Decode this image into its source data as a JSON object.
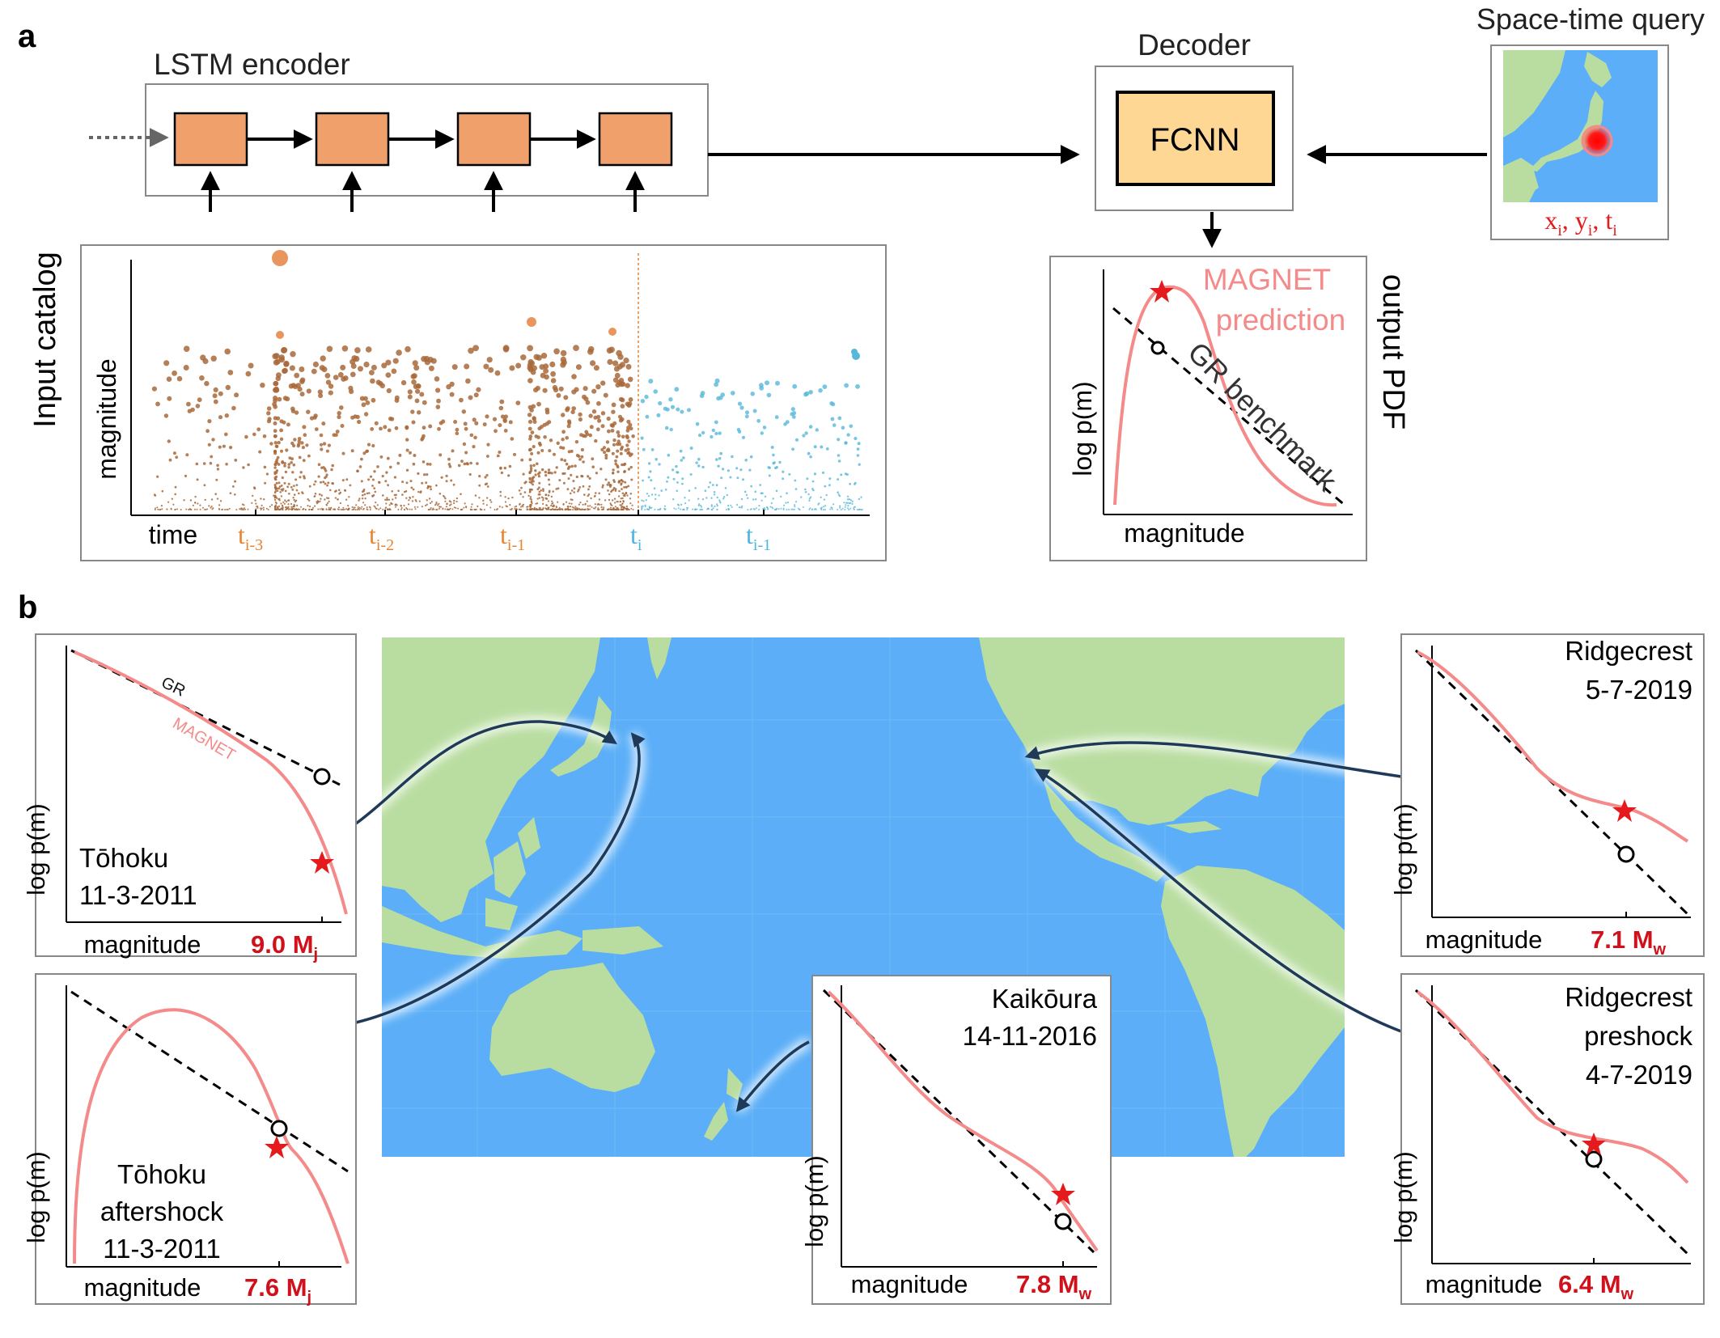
{
  "panel_a": {
    "label": "a",
    "lstm_title": "LSTM encoder",
    "decoder_title": "Decoder",
    "fcnn_label": "FCNN",
    "query_title": "Space-time query",
    "query_params": {
      "x": "x",
      "y": "y",
      "t": "t",
      "sub": "i",
      "sep": ", "
    },
    "catalog_side_label": "Input catalog",
    "catalog_ylabel": "magnitude",
    "catalog_xlabel": "time",
    "time_ticks": [
      {
        "base": "t",
        "sub": "i-3",
        "color": "#E8822E"
      },
      {
        "base": "t",
        "sub": "i-2",
        "color": "#E8822E"
      },
      {
        "base": "t",
        "sub": "i-1",
        "color": "#E8822E"
      },
      {
        "base": "t",
        "sub": "i",
        "color": "#4BB4E0"
      },
      {
        "base": "t",
        "sub": "i-1",
        "color": "#4BB4E0"
      }
    ],
    "output_side_label": "output PDF",
    "output_ylabel": "log  p(m)",
    "output_xlabel": "magnitude",
    "magnet_label_1": "MAGNET",
    "magnet_label_2": "prediction",
    "gr_label": "GR benchmark"
  },
  "panel_b": {
    "label": "b",
    "gr_label": "GR",
    "magnet_label": "MAGNET",
    "ylabel": "log  p(m)",
    "xlabel": "magnitude",
    "events": [
      {
        "lines": [
          "Tōhoku",
          "11-3-2011"
        ],
        "mag": "9.0 M",
        "sub": "j"
      },
      {
        "lines": [
          "Tōhoku",
          "aftershock",
          "11-3-2011"
        ],
        "mag": "7.6 M",
        "sub": "j"
      },
      {
        "lines": [
          "Kaikōura",
          "14-11-2016"
        ],
        "mag": "7.8 M",
        "sub": "w"
      },
      {
        "lines": [
          "Ridgecrest",
          "5-7-2019"
        ],
        "mag": "7.1 M",
        "sub": "w"
      },
      {
        "lines": [
          "Ridgecrest",
          "preshock",
          "4-7-2019"
        ],
        "mag": "6.4 M",
        "sub": "w"
      }
    ]
  },
  "colors": {
    "lstm_cell": "#F0A06A",
    "fcnn_fill": "#FFD795",
    "magnet": "#F48A8A",
    "star": "#E41A1C",
    "ocean": "#5BAEF7",
    "land": "#B9DDA1",
    "arrow_dark": "#1F3A58",
    "old_events": "#A8683A",
    "new_events": "#58B8DA",
    "mag_red": "#D0111B"
  }
}
